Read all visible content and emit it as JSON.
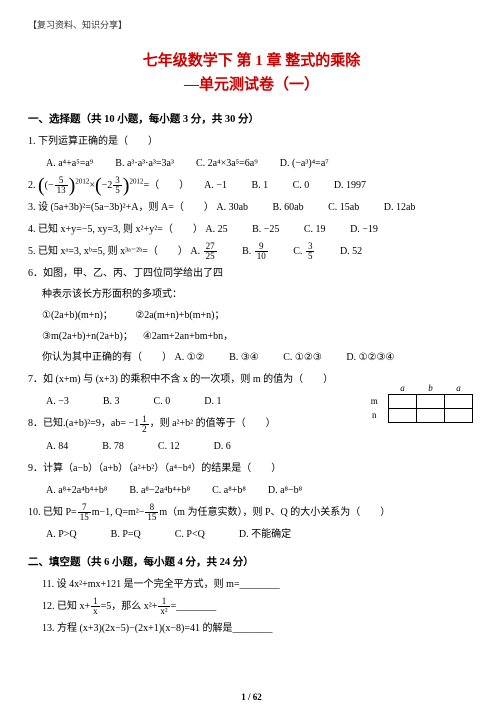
{
  "header_tag": "【复习资料、知识分享】",
  "title_main": "七年级数学下 第 1 章 整式的乘除",
  "title_sub": "—单元测试卷（一）",
  "section1": "一、选择题（共 10 小题，每小题 3 分，共 30 分）",
  "q1": "1. 下列运算正确的是（　　）",
  "q1A": "A. a⁴+a⁵=a⁹",
  "q1B": "B. a³·a³·a³=3a³",
  "q1C": "C. 2a⁴×3a⁵=6a⁹",
  "q1D": "D. (−a³)⁴=a⁷",
  "q2prefix": "2.",
  "q2expr_l": "(−",
  "q2frac1n": "5",
  "q2frac1d": "13",
  "q2expr_m": ")²⁰¹²×(−2",
  "q2frac2n": "3",
  "q2frac2d": "5",
  "q2expr_r": ")²⁰¹²=（　　）",
  "q2A": "A. −1",
  "q2B": "B. 1",
  "q2C": "C. 0",
  "q2D": "D. 1997",
  "q3": "3. 设 (5a+3b)²=(5a−3b)²+A，则 A=（　　）",
  "q3A": "A. 30ab",
  "q3B": "B. 60ab",
  "q3C": "C. 15ab",
  "q3D": "D. 12ab",
  "q4": "4. 已知 x+y=−5, xy=3, 则 x²+y²=（　　）",
  "q4A": "A. 25",
  "q4B": "B. −25",
  "q4C": "C. 19",
  "q4D": "D. −19",
  "q5": "5. 已知 xᵃ=3, xᵇ=5, 则 x³ᵃ⁻²ᵇ=（　　）",
  "q5A": "A. ",
  "q5Af_n": "27",
  "q5Af_d": "25",
  "q5B": "B. ",
  "q5Bf_n": "9",
  "q5Bf_d": "10",
  "q5C": "C. ",
  "q5Cf_n": "3",
  "q5Cf_d": "5",
  "q5D": "D. 52",
  "q6_1": "6．如图，甲、乙、丙、丁四位同学给出了四",
  "q6_2": "种表示该长方形面积的多项式：",
  "q6_o1": "①(2a+b)(m+n)；",
  "q6_o2": "②2a(m+n)+b(m+n)；",
  "q6_o3": "③m(2a+b)+n(2a+b)；",
  "q6_o4": "④2am+2an+bm+bn，",
  "q6_3": "你认为其中正确的有（　　）",
  "q6A": "A. ①②",
  "q6B": "B. ③④",
  "q6C": "C. ①②③",
  "q6D": "D. ①②③④",
  "tbl_a": "a",
  "tbl_b": "b",
  "tbl_a2": "a",
  "tbl_m": "m",
  "tbl_n": "n",
  "q7_1": "7．如 (x+m) 与 (x+3) 的乘积中不含 x 的一次项，则 m 的值为（　　）",
  "q7A": "A. −3",
  "q7B": "B. 3",
  "q7C": "C. 0",
  "q7D": "D. 1",
  "q8_1": "8．已知.(a+b)²=9，ab= −1",
  "q8fn": "1",
  "q8fd": "2",
  "q8_2": "，则 a²+b² 的值等于（　　）",
  "q8A": "A. 84",
  "q8B": "B. 78",
  "q8C": "C. 12",
  "q8D": "D. 6",
  "q9": "9．计算（a−b）（a+b）（a²+b²）（a⁴−b⁴）的结果是（　　）",
  "q9A": "A. a⁸+2a⁴b⁴+b⁸",
  "q9B": "B. a⁸−2a⁴b⁴+b⁸",
  "q9C": "C. a⁸+b⁸",
  "q9D": "D. a⁸−b⁸",
  "q10_1": "10. 已知 P=",
  "q10f1n": "7",
  "q10f1d": "15",
  "q10_2": "m−1, Q=m²−",
  "q10f2n": "8",
  "q10f2d": "15",
  "q10_3": "m（m 为任意实数），则 P、Q 的大小关系为（　　）",
  "q10A": "A. P>Q",
  "q10B": "B. P=Q",
  "q10C": "C. P<Q",
  "q10D": "D. 不能确定",
  "section2": "二、填空题（共 6 小题，每小题 4 分，共 24 分）",
  "q11": "11. 设 4x²+mx+121 是一个完全平方式，则 m=________",
  "q12_1": "12. 已知 x+",
  "q12f1n": "1",
  "q12f1d": "x",
  "q12_2": "=5，那么 x²+",
  "q12f2n": "1",
  "q12f2d": "x²",
  "q12_3": "=________",
  "q13": "13. 方程 (x+3)(2x−5)−(2x+1)(x−8)=41 的解是________",
  "page_num": "1 / 62",
  "colors": {
    "accent": "#cc0000",
    "text": "#000000",
    "bg": "#ffffff"
  }
}
